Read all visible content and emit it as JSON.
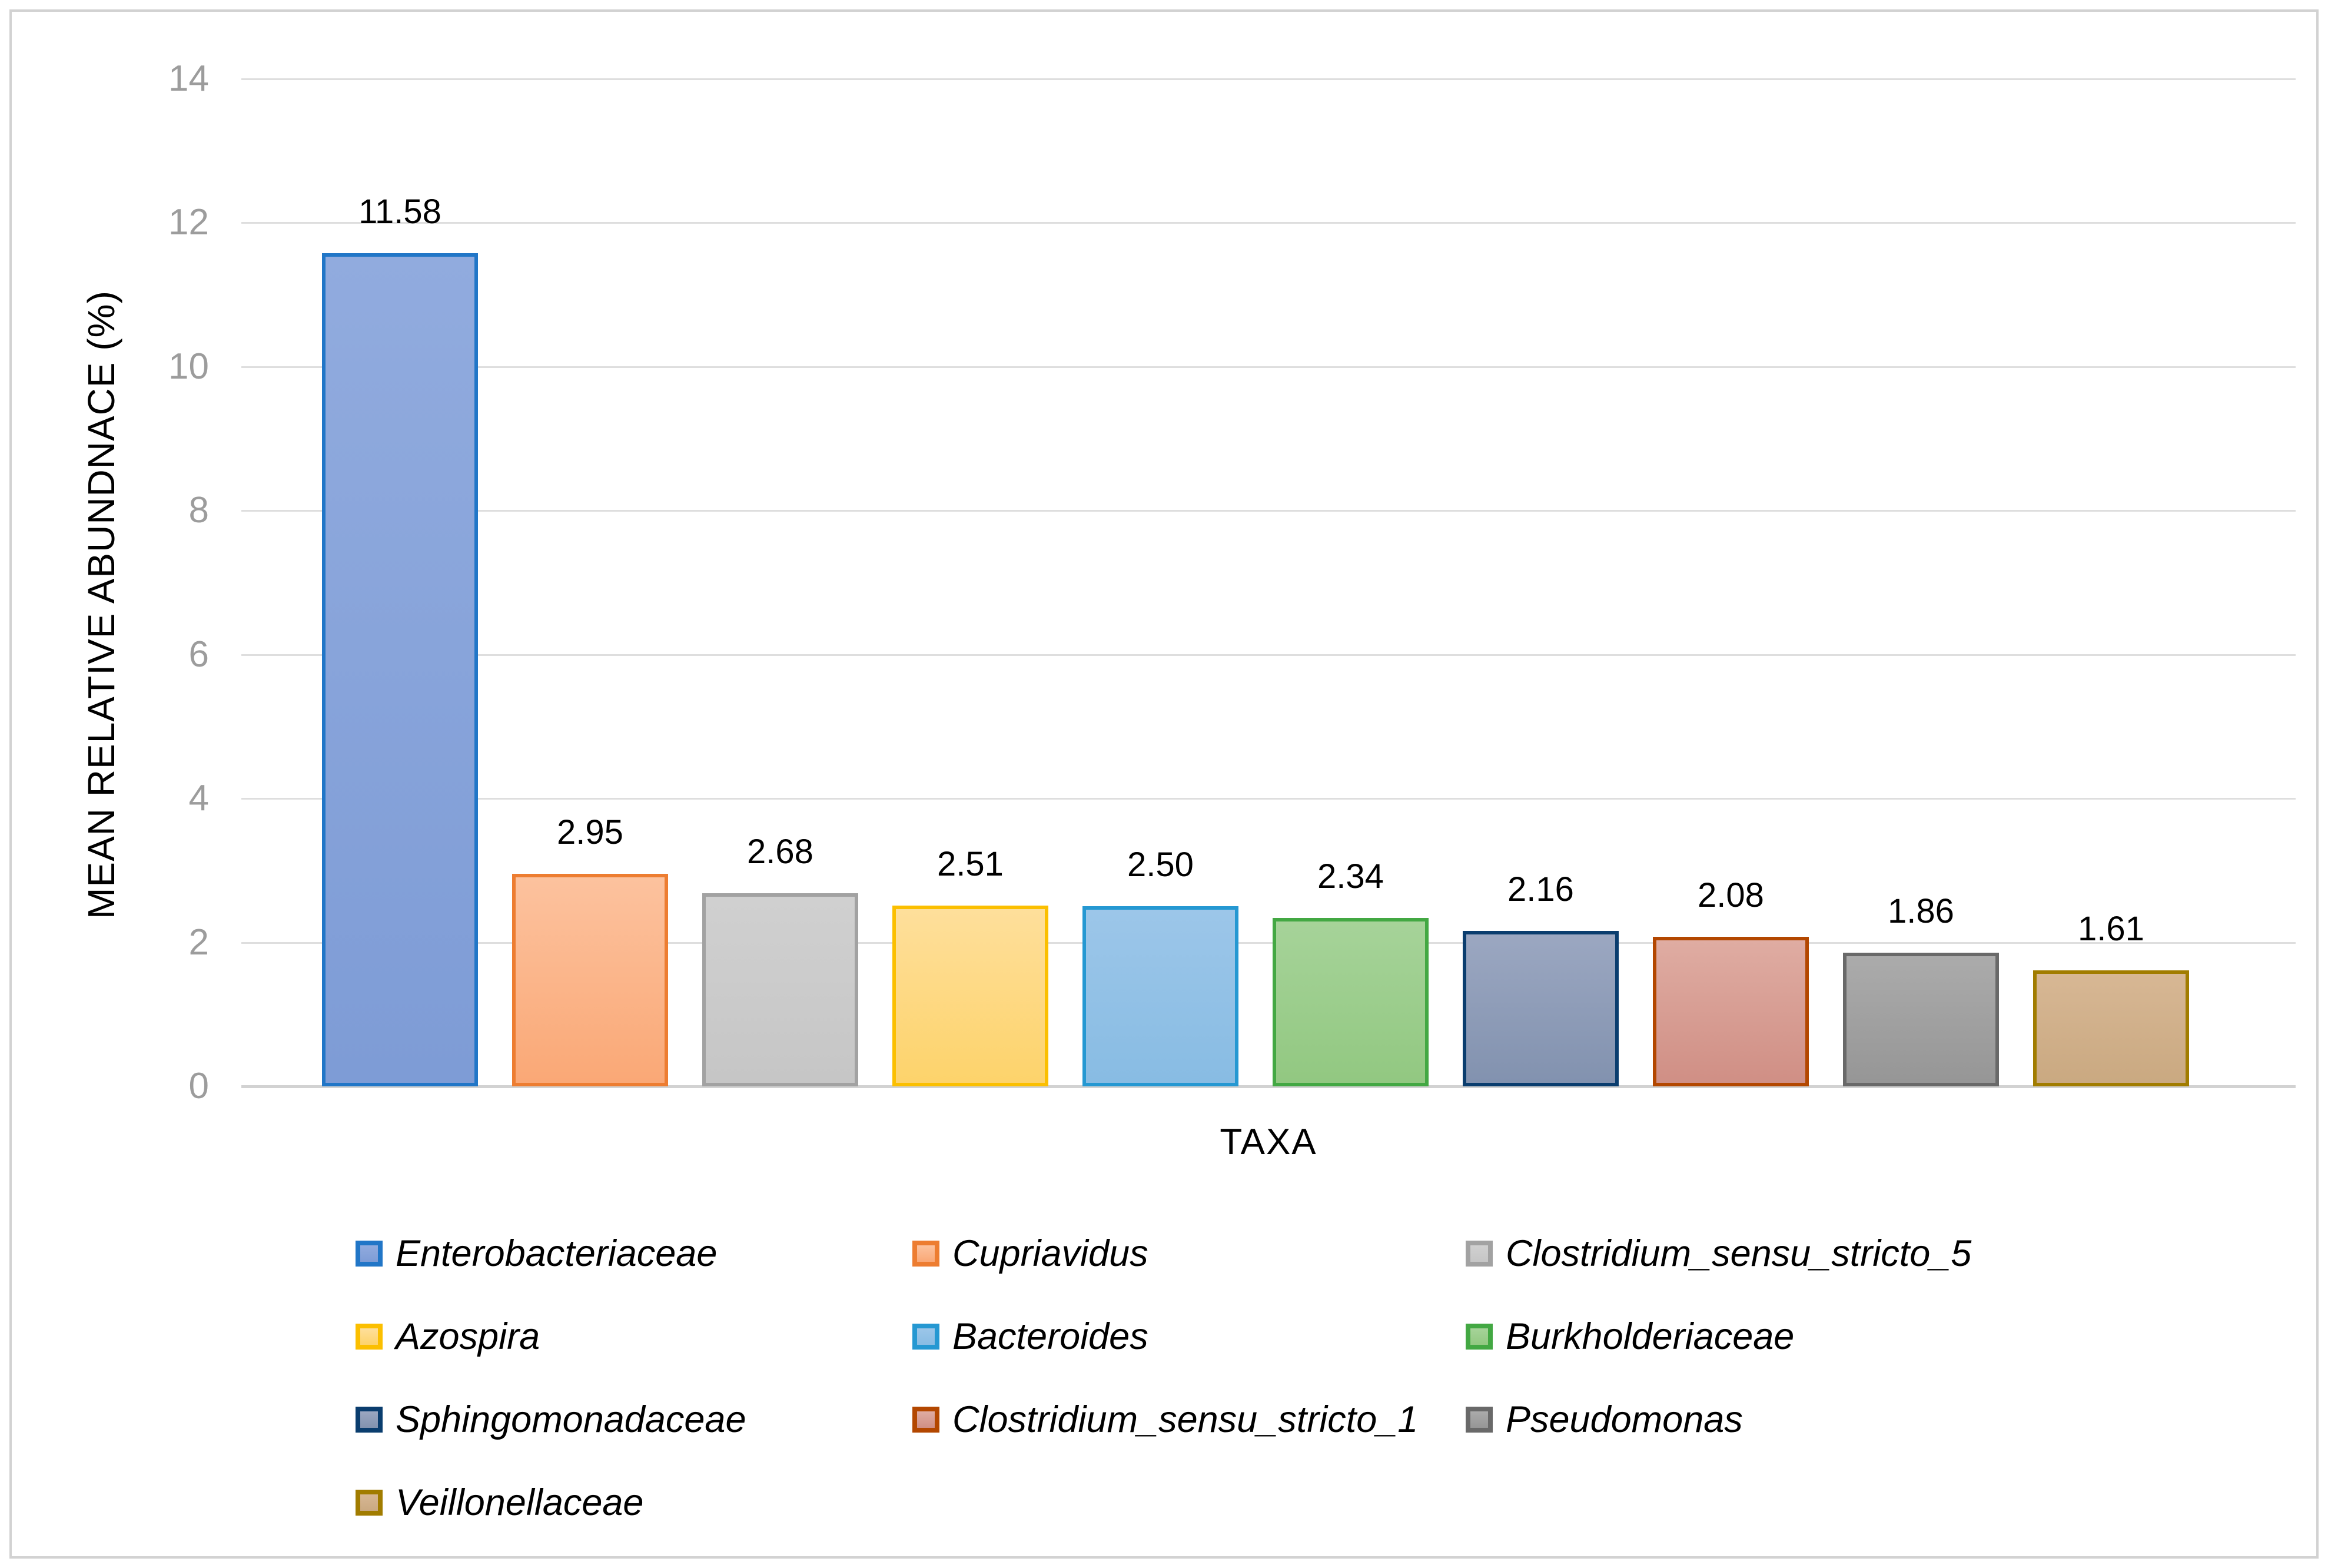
{
  "chart_data": {
    "type": "bar",
    "title": "",
    "xlabel": "TAXA",
    "ylabel": "MEAN RELATIVE ABUNDNACE (%)",
    "ylim": [
      0,
      14
    ],
    "yticks": [
      0,
      2,
      4,
      6,
      8,
      10,
      12,
      14
    ],
    "grid": true,
    "legend_position": "bottom",
    "legend_columns": 3,
    "categories": [
      "Enterobacteriaceae",
      "Cupriavidus",
      "Clostridium_sensu_stricto_5",
      "Azospira",
      "Bacteroides",
      "Burkholderiaceae",
      "Sphingomonadaceae",
      "Clostridium_sensu_stricto_1",
      "Pseudomonas",
      "Veillonellaceae"
    ],
    "values": [
      11.58,
      2.95,
      2.68,
      2.51,
      2.5,
      2.34,
      2.16,
      2.08,
      1.86,
      1.61
    ],
    "bars": [
      {
        "label": "Enterobacteriaceae",
        "value": 11.58,
        "value_label": "11.58",
        "fill_top": "#91abde",
        "fill_bottom": "#7e9cd6",
        "border": "#2176c7"
      },
      {
        "label": "Cupriavidus",
        "value": 2.95,
        "value_label": "2.95",
        "fill_top": "#fcc29e",
        "fill_bottom": "#faa876",
        "border": "#ed7d31"
      },
      {
        "label": "Clostridium_sensu_stricto_5",
        "value": 2.68,
        "value_label": "2.68",
        "fill_top": "#d0d0d0",
        "fill_bottom": "#c6c6c6",
        "border": "#a2a2a2"
      },
      {
        "label": "Azospira",
        "value": 2.51,
        "value_label": "2.51",
        "fill_top": "#fedf9b",
        "fill_bottom": "#fdd36b",
        "border": "#fbbf00"
      },
      {
        "label": "Bacteroides",
        "value": 2.5,
        "value_label": "2.50",
        "fill_top": "#9cc6e9",
        "fill_bottom": "#88bce3",
        "border": "#2598d2"
      },
      {
        "label": "Burkholderiaceae",
        "value": 2.34,
        "value_label": "2.34",
        "fill_top": "#a6d399",
        "fill_bottom": "#92c881",
        "border": "#43a843"
      },
      {
        "label": "Sphingomonadaceae",
        "value": 2.16,
        "value_label": "2.16",
        "fill_top": "#9ba7c1",
        "fill_bottom": "#8292af",
        "border": "#0a3d6e"
      },
      {
        "label": "Clostridium_sensu_stricto_1",
        "value": 2.08,
        "value_label": "2.08",
        "fill_top": "#dfaca2",
        "fill_bottom": "#d08f85",
        "border": "#b34700"
      },
      {
        "label": "Pseudomonas",
        "value": 1.86,
        "value_label": "1.86",
        "fill_top": "#ababab",
        "fill_bottom": "#969696",
        "border": "#696969"
      },
      {
        "label": "Veillonellaceae",
        "value": 1.61,
        "value_label": "1.61",
        "fill_top": "#d7b794",
        "fill_bottom": "#caa981",
        "border": "#a17c00"
      }
    ],
    "colors": {
      "gridline": "#dedede",
      "axis_line": "#d2d2d2",
      "tick_label": "#9c9c9c",
      "frame_border": "#d2d2d2",
      "text": "#000000"
    }
  }
}
